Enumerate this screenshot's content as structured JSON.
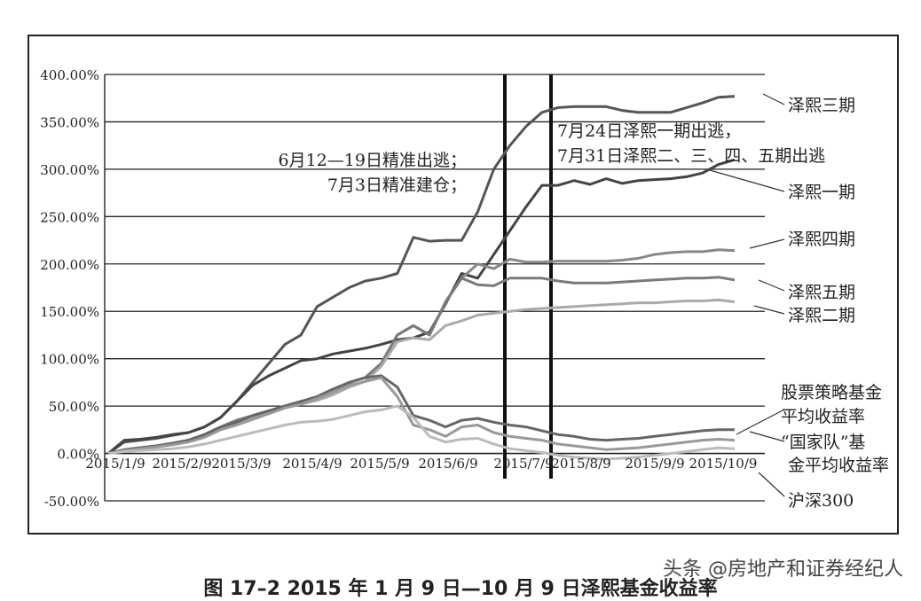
{
  "caption": "图 17–2  2015 年 1 月 9 日—10 月 9 日泽熙基金收益率",
  "watermark": "头条 @房地产和证券经纪人",
  "annotations": {
    "left_line1": "6月12—19日精准出逃；",
    "left_line2": "7月3日精准建仓；",
    "right_line1": "7月24日泽熙一期出逃，",
    "right_line2": "7月31日泽熙二、三、四、五期出逃"
  },
  "chart_data": {
    "type": "line",
    "title": "",
    "xlabel": "",
    "ylabel": "",
    "x_ticks": [
      "2015/1/9",
      "2015/2/9",
      "2015/3/9",
      "2015/4/9",
      "2015/5/9",
      "2015/6/9",
      "2015/7/9",
      "2015/8/9",
      "2015/9/9",
      "2015/10/9"
    ],
    "y_ticks": [
      "400.00%",
      "350.00%",
      "300.00%",
      "250.00%",
      "200.00%",
      "150.00%",
      "100.00%",
      "50.00%",
      "0.00%",
      "-50.00%"
    ],
    "ylim": [
      -50,
      400
    ],
    "grid": "horizontal",
    "x": [
      "2015-01-09",
      "2015-01-16",
      "2015-01-23",
      "2015-01-30",
      "2015-02-06",
      "2015-02-13",
      "2015-02-20",
      "2015-02-27",
      "2015-03-06",
      "2015-03-13",
      "2015-03-20",
      "2015-03-27",
      "2015-04-03",
      "2015-04-10",
      "2015-04-17",
      "2015-04-24",
      "2015-05-01",
      "2015-05-08",
      "2015-05-15",
      "2015-05-22",
      "2015-05-29",
      "2015-06-05",
      "2015-06-12",
      "2015-06-19",
      "2015-06-26",
      "2015-07-03",
      "2015-07-10",
      "2015-07-17",
      "2015-07-24",
      "2015-07-31",
      "2015-08-07",
      "2015-08-14",
      "2015-08-21",
      "2015-08-28",
      "2015-09-04",
      "2015-09-11",
      "2015-09-18",
      "2015-09-25",
      "2015-10-02",
      "2015-10-09"
    ],
    "vlines": [
      "2015-07-03",
      "2015-07-24"
    ],
    "series": [
      {
        "name": "泽熙三期",
        "color": "#555555",
        "values": [
          0,
          12,
          14,
          16,
          19,
          22,
          28,
          38,
          55,
          75,
          95,
          115,
          125,
          155,
          165,
          175,
          182,
          185,
          190,
          228,
          224,
          225,
          225,
          255,
          300,
          325,
          345,
          360,
          365,
          366,
          366,
          366,
          362,
          360,
          360,
          360,
          365,
          370,
          376,
          377
        ]
      },
      {
        "name": "泽熙一期",
        "color": "#444444",
        "values": [
          0,
          14,
          15,
          17,
          20,
          22,
          28,
          38,
          55,
          72,
          82,
          90,
          98,
          100,
          105,
          108,
          111,
          115,
          120,
          122,
          128,
          158,
          190,
          185,
          210,
          235,
          260,
          283,
          283,
          288,
          284,
          290,
          285,
          288,
          289,
          290,
          292,
          296,
          305,
          310
        ]
      },
      {
        "name": "泽熙四期",
        "color": "#888888",
        "values": [
          0,
          4,
          6,
          8,
          11,
          14,
          20,
          28,
          35,
          40,
          45,
          50,
          55,
          58,
          65,
          75,
          80,
          95,
          125,
          135,
          125,
          160,
          185,
          200,
          195,
          205,
          202,
          202,
          203,
          203,
          203,
          203,
          204,
          206,
          210,
          212,
          213,
          213,
          215,
          214
        ]
      },
      {
        "name": "泽熙五期",
        "color": "#7a7a7a",
        "values": [
          0,
          4,
          6,
          8,
          11,
          14,
          20,
          28,
          35,
          40,
          45,
          50,
          55,
          58,
          65,
          75,
          80,
          95,
          125,
          135,
          125,
          160,
          185,
          178,
          177,
          185,
          185,
          185,
          182,
          180,
          180,
          180,
          181,
          182,
          183,
          184,
          185,
          185,
          186,
          183
        ]
      },
      {
        "name": "泽熙二期",
        "color": "#aaaaaa",
        "values": [
          0,
          3,
          5,
          7,
          10,
          13,
          18,
          26,
          33,
          38,
          43,
          48,
          52,
          56,
          62,
          70,
          76,
          92,
          118,
          122,
          120,
          135,
          140,
          146,
          148,
          150,
          152,
          153,
          154,
          155,
          156,
          157,
          158,
          159,
          159,
          160,
          161,
          161,
          162,
          160
        ]
      },
      {
        "name": "股票策略基金平均收益率",
        "color": "#666666",
        "values": [
          0,
          4,
          6,
          8,
          10,
          14,
          20,
          28,
          33,
          40,
          45,
          50,
          55,
          60,
          68,
          75,
          80,
          82,
          70,
          40,
          35,
          28,
          35,
          37,
          33,
          30,
          28,
          24,
          20,
          18,
          15,
          14,
          15,
          16,
          18,
          20,
          22,
          24,
          25,
          25
        ]
      },
      {
        "name": "“国家队”基金平均收益率",
        "color": "#999999",
        "values": [
          0,
          3,
          5,
          7,
          9,
          12,
          17,
          25,
          30,
          36,
          42,
          48,
          52,
          58,
          65,
          72,
          76,
          80,
          60,
          30,
          25,
          18,
          28,
          30,
          22,
          18,
          16,
          14,
          10,
          8,
          6,
          4,
          5,
          6,
          8,
          10,
          12,
          14,
          15,
          14
        ]
      },
      {
        "name": "沪深300",
        "color": "#bbbbbb",
        "values": [
          0,
          2,
          3,
          4,
          5,
          7,
          10,
          14,
          18,
          22,
          26,
          30,
          33,
          34,
          36,
          40,
          44,
          46,
          50,
          38,
          18,
          12,
          15,
          16,
          10,
          5,
          3,
          1,
          -2,
          -4,
          -5,
          -6,
          -5,
          -4,
          -2,
          0,
          2,
          4,
          6,
          5
        ]
      }
    ]
  }
}
